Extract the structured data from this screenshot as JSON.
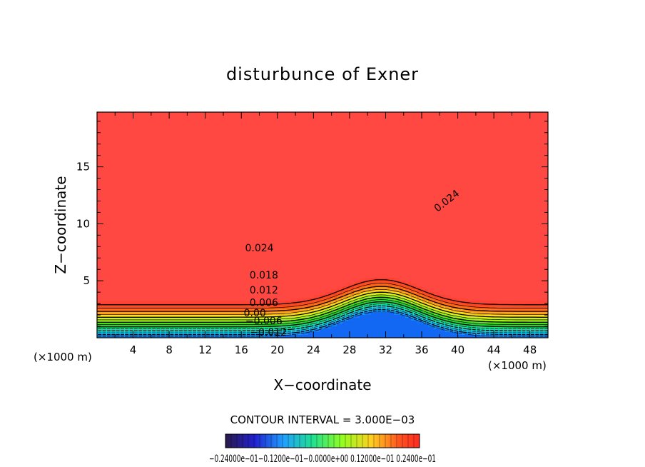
{
  "chart_data": {
    "type": "heatmap",
    "title": "disturbunce of Exner",
    "xlabel": "X−coordinate",
    "ylabel": "Z−coordinate",
    "x_unit_left": "(×1000 m)",
    "x_unit_right": "(×1000 m)",
    "xlim": [
      0,
      50
    ],
    "ylim": [
      0,
      19.8
    ],
    "xticks": [
      4,
      8,
      12,
      16,
      20,
      24,
      28,
      32,
      36,
      40,
      44,
      48
    ],
    "yticks": [
      5,
      10,
      15
    ],
    "contour_interval_text": "CONTOUR INTERVAL = 3.000E−03",
    "contour_labels": [
      {
        "text": "0.024",
        "x": 18,
        "z": 7.9
      },
      {
        "text": "0.024",
        "x": 39,
        "z": 12.1
      },
      {
        "text": "0.018",
        "x": 18.5,
        "z": 5.5
      },
      {
        "text": "0.012",
        "x": 18.5,
        "z": 4.2
      },
      {
        "text": "0.006",
        "x": 18.5,
        "z": 3.1
      },
      {
        "text": "0.00",
        "x": 17.5,
        "z": 2.2
      },
      {
        "text": "−0.006",
        "x": 18.5,
        "z": 1.5
      },
      {
        "text": "−0.012",
        "x": 19,
        "z": 0.5
      }
    ],
    "colorbar": {
      "min": -0.024,
      "max": 0.024,
      "label_text": "−0.24000e−01−0.1200e−01−0.0000e+00 0.12000e−01 0.2400e−01"
    },
    "colors": {
      "top_field": "#ff4a1c",
      "core_max": "#ff3a38",
      "bottom_min": "#1066ee",
      "contour_line": "#000000"
    }
  }
}
